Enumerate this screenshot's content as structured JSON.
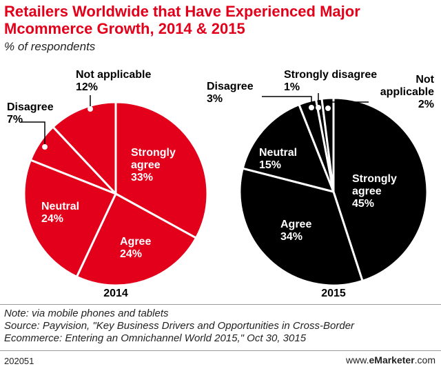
{
  "title_line1": "Retailers Worldwide that Have Experienced Major",
  "title_line2": "Mcommerce Growth, 2014 & 2015",
  "subtitle": "% of respondents",
  "footer": {
    "note": "Note: via mobile phones and tablets",
    "source1": "Source: Payvision, \"Key Business Drivers and Opportunities in Cross-Border",
    "source2": "Ecommerce: Entering an Omnichannel World 2015,\" Oct 30, 3015",
    "chart_id": "202051",
    "brand_prefix": "www.",
    "brand_bold": "eMarketer",
    "brand_suffix": ".com"
  },
  "chart_data": [
    {
      "type": "pie",
      "label": "2014",
      "color": "#e2001a",
      "label_color": "#ffffff",
      "slices": [
        {
          "name": "Strongly agree",
          "value": 33
        },
        {
          "name": "Agree",
          "value": 24
        },
        {
          "name": "Neutral",
          "value": 24
        },
        {
          "name": "Disagree",
          "value": 7
        },
        {
          "name": "Not applicable",
          "value": 12
        }
      ]
    },
    {
      "type": "pie",
      "label": "2015",
      "color": "#000000",
      "label_color": "#ffffff",
      "slices": [
        {
          "name": "Strongly agree",
          "value": 45
        },
        {
          "name": "Agree",
          "value": 34
        },
        {
          "name": "Neutral",
          "value": 15
        },
        {
          "name": "Disagree",
          "value": 3
        },
        {
          "name": "Strongly disagree",
          "value": 1
        },
        {
          "name": "Not applicable",
          "value": 2
        }
      ]
    }
  ]
}
